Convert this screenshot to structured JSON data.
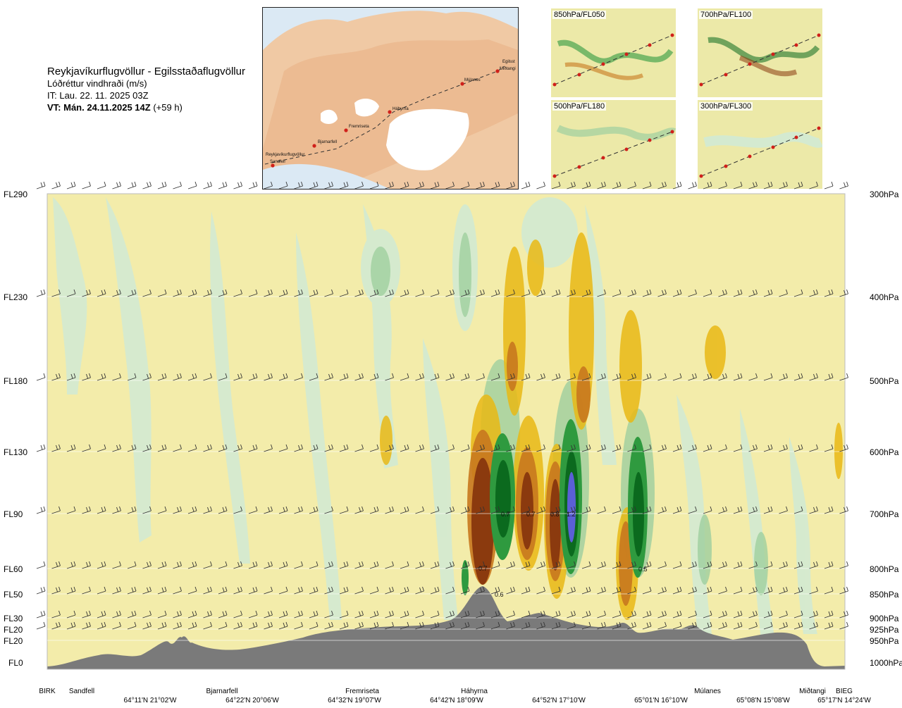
{
  "header": {
    "route": "Reykjavíkurflugvöllur - Egilsstaðaflugvöllur",
    "variable": "Lóðréttur vindhraði (m/s)",
    "issue_time": "IT: Lau. 22. 11. 2025 03Z",
    "valid_time": "VT: Mán. 24.11.2025 14Z",
    "valid_offset": "(+59 h)"
  },
  "map": {
    "waypoints": [
      "Reykjavíkurflugvöllur",
      "Sandfell",
      "Bjarnarfell",
      "Fremriseta",
      "Háhyrna",
      "Múlanes",
      "Miðtangi",
      "Egilsst"
    ]
  },
  "thumbnails": [
    {
      "label": "850hPa/FL050"
    },
    {
      "label": "700hPa/FL100"
    },
    {
      "label": "500hPa/FL180"
    },
    {
      "label": "300hPa/FL300"
    }
  ],
  "chart_data": {
    "type": "heatmap",
    "title": "Reykjavíkurflugvöllur - Egilsstaðaflugvöllur",
    "colors": {
      "strong_down": "#8b3a0e",
      "mod_down": "#c8781e",
      "weak_down": "#e9b915",
      "slight_down": "#f5eda3",
      "slight_up": "#d4ead0",
      "weak_up": "#9fcf9f",
      "mod_up": "#2f9a3f",
      "strong_up": "#0b6a1e",
      "max_up": "#5b5fd6",
      "terrain": "#7a7a7a"
    },
    "left_axis": [
      "FL290",
      "FL230",
      "FL180",
      "FL130",
      "FL90",
      "FL60",
      "FL50",
      "FL30",
      "FL20",
      "FL20",
      "FL0"
    ],
    "right_axis": [
      "300hPa",
      "400hPa",
      "500hPa",
      "600hPa",
      "700hPa",
      "800hPa",
      "850hPa",
      "900hPa",
      "925hPa",
      "950hPa",
      "1000hPa"
    ],
    "locations": [
      "BIRK",
      "Sandfell",
      "Bjarnarfell",
      "Fremriseta",
      "Háhyrna",
      "Múlanes",
      "Miðtangi",
      "BIEG"
    ],
    "coordinates": [
      "64°11'N 21°02'W",
      "64°22'N 20°06'W",
      "64°32'N 19°07'W",
      "64°42'N 18°09'W",
      "64°52'N 17°10'W",
      "65°01'N 16°10'W",
      "65°08'N 15°08'W",
      "65°17'N 14°24'W"
    ],
    "value_labels": [
      "0.7",
      "0.7",
      "0.8",
      "1.2",
      "0.7",
      "0.6",
      "0.5"
    ]
  }
}
